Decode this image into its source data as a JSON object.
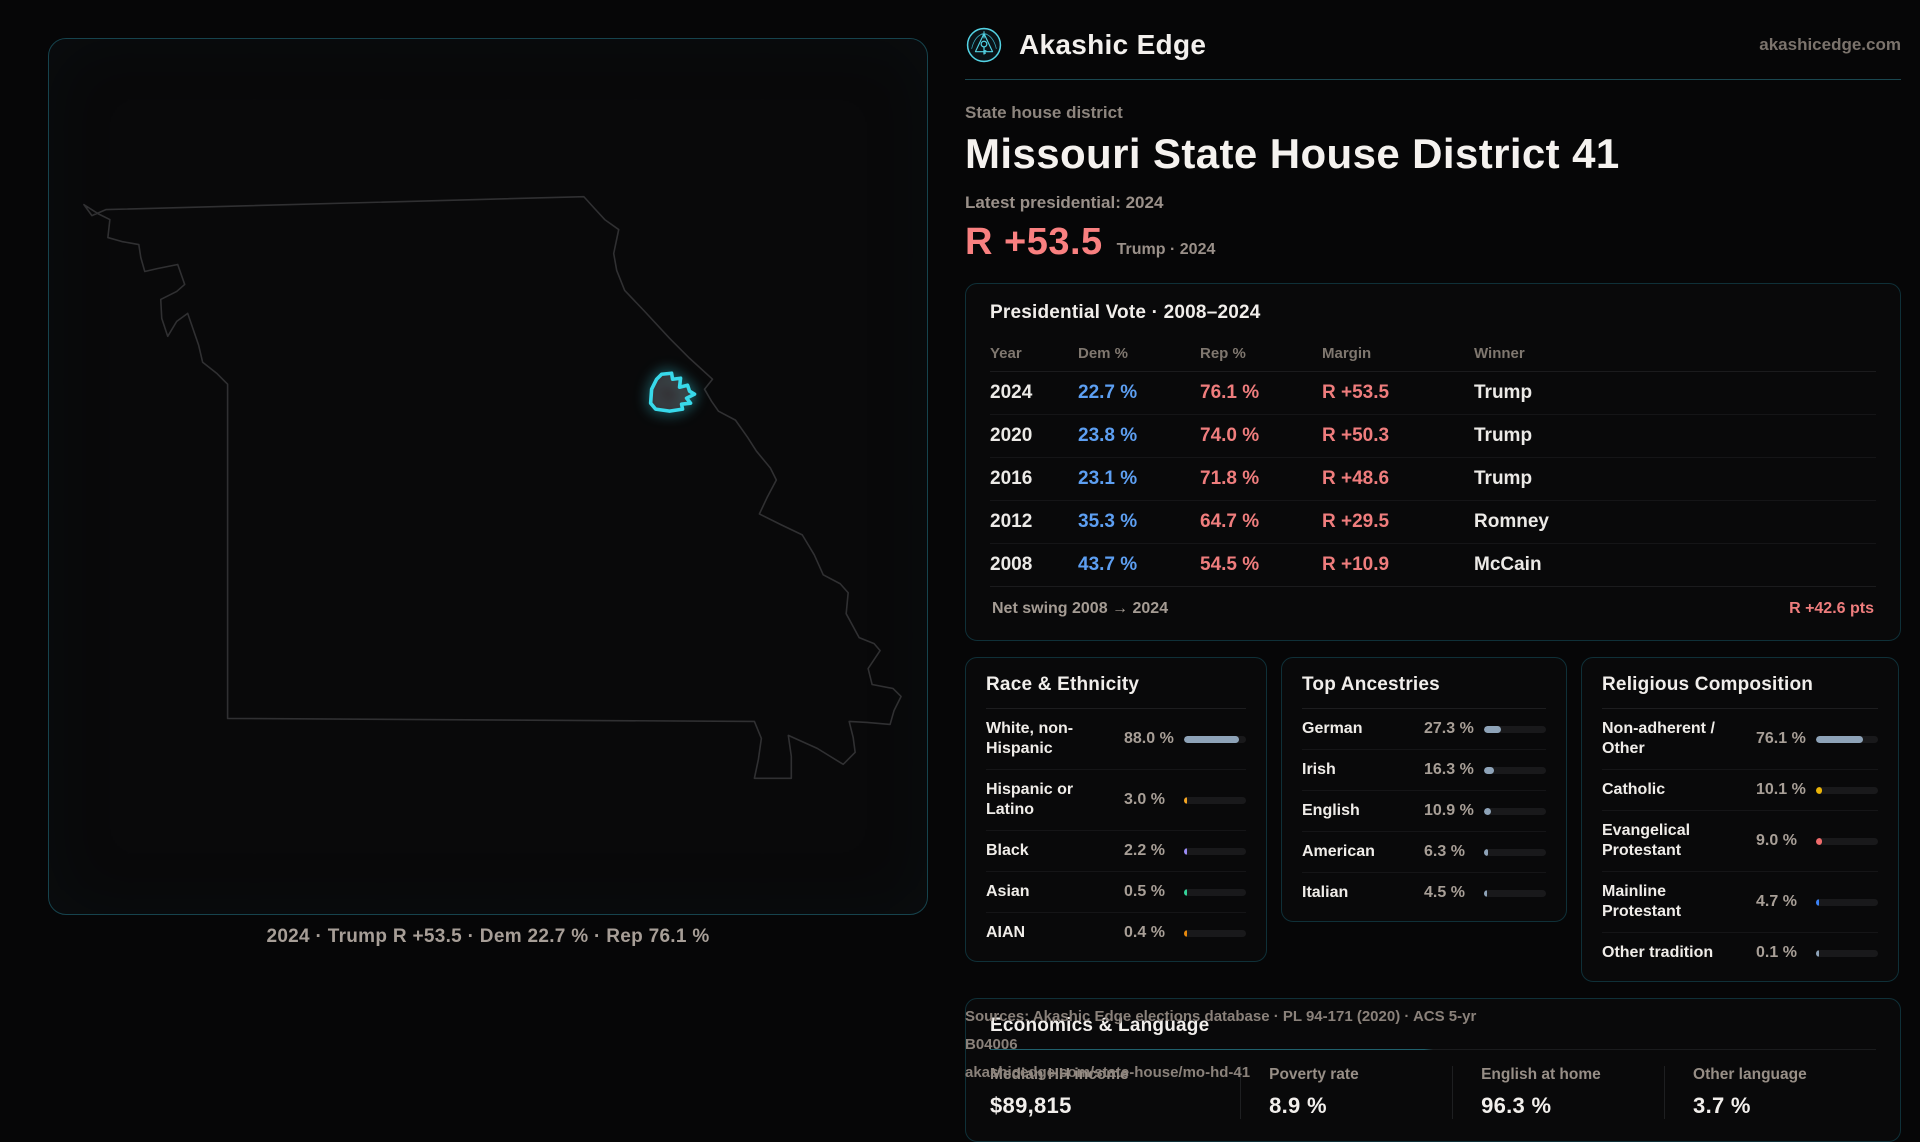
{
  "brand": {
    "name": "Akashic Edge",
    "domain": "akashicedge.com"
  },
  "page": {
    "kicker": "State house district",
    "title": "Missouri State House District 41",
    "latest_label": "Latest presidential: 2024",
    "headline_margin": "R +53.5",
    "headline_context": "Trump · 2024"
  },
  "map": {
    "caption": "2024 · Trump R +53.5 · Dem 22.7 % · Rep 76.1 %",
    "district_color": "#38d9ea",
    "outline_color": "#303032"
  },
  "vote_table": {
    "title": "Presidential Vote · 2008–2024",
    "columns": [
      "Year",
      "Dem %",
      "Rep %",
      "Margin",
      "Winner"
    ],
    "rows": [
      {
        "year": "2024",
        "dem": "22.7 %",
        "rep": "76.1 %",
        "margin": "R +53.5",
        "winner": "Trump"
      },
      {
        "year": "2020",
        "dem": "23.8 %",
        "rep": "74.0 %",
        "margin": "R +50.3",
        "winner": "Trump"
      },
      {
        "year": "2016",
        "dem": "23.1 %",
        "rep": "71.8 %",
        "margin": "R +48.6",
        "winner": "Trump"
      },
      {
        "year": "2012",
        "dem": "35.3 %",
        "rep": "64.7 %",
        "margin": "R +29.5",
        "winner": "Romney"
      },
      {
        "year": "2008",
        "dem": "43.7 %",
        "rep": "54.5 %",
        "margin": "R +10.9",
        "winner": "McCain"
      }
    ],
    "net_swing_label": "Net swing 2008 → 2024",
    "net_swing_value": "R +42.6 pts"
  },
  "panels": [
    {
      "title": "Race & Ethnicity",
      "rows": [
        {
          "label": "White, non-Hispanic",
          "value": "88.0 %",
          "pct": 88.0,
          "color": "#8ea3b8"
        },
        {
          "label": "Hispanic or Latino",
          "value": "3.0 %",
          "pct": 3.0,
          "color": "#f5a623"
        },
        {
          "label": "Black",
          "value": "2.2 %",
          "pct": 2.2,
          "color": "#9b8cf6"
        },
        {
          "label": "Asian",
          "value": "0.5 %",
          "pct": 0.5,
          "color": "#34d399"
        },
        {
          "label": "AIAN",
          "value": "0.4 %",
          "pct": 0.4,
          "color": "#e8890c"
        }
      ]
    },
    {
      "title": "Top Ancestries",
      "rows": [
        {
          "label": "German",
          "value": "27.3 %",
          "pct": 27.3,
          "color": "#8ea3b8"
        },
        {
          "label": "Irish",
          "value": "16.3 %",
          "pct": 16.3,
          "color": "#8ea3b8"
        },
        {
          "label": "English",
          "value": "10.9 %",
          "pct": 10.9,
          "color": "#8ea3b8"
        },
        {
          "label": "American",
          "value": "6.3 %",
          "pct": 6.3,
          "color": "#8ea3b8"
        },
        {
          "label": "Italian",
          "value": "4.5 %",
          "pct": 4.5,
          "color": "#8ea3b8"
        }
      ]
    },
    {
      "title": "Religious Composition",
      "rows": [
        {
          "label": "Non-adherent / Other",
          "value": "76.1 %",
          "pct": 76.1,
          "color": "#8ea3b8"
        },
        {
          "label": "Catholic",
          "value": "10.1 %",
          "pct": 10.1,
          "color": "#eab308"
        },
        {
          "label": "Evangelical Protestant",
          "value": "9.0 %",
          "pct": 9.0,
          "color": "#ef6b6b"
        },
        {
          "label": "Mainline Protestant",
          "value": "4.7 %",
          "pct": 4.7,
          "color": "#3b82f6"
        },
        {
          "label": "Other tradition",
          "value": "0.1 %",
          "pct": 0.1,
          "color": "#8ea3b8"
        }
      ]
    }
  ],
  "economics": {
    "title": "Economics & Language",
    "stats": [
      {
        "label": "Median HH income",
        "value": "$89,815"
      },
      {
        "label": "Poverty rate",
        "value": "8.9 %"
      },
      {
        "label": "English at home",
        "value": "96.3 %"
      },
      {
        "label": "Other language",
        "value": "3.7 %"
      }
    ]
  },
  "sources": {
    "line1": "Sources: Akashic Edge elections database · PL 94-171 (2020) · ACS 5-yr B04006",
    "line2": "akashicedge.com/state-house/mo-hd-41"
  }
}
